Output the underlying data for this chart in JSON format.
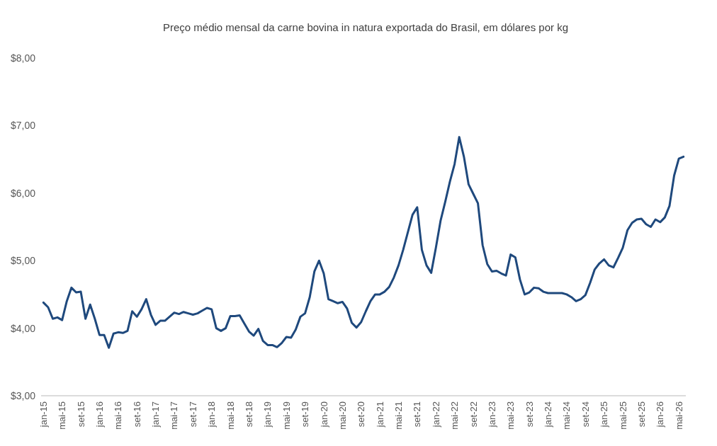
{
  "chart_data": {
    "type": "line",
    "title": "Preço médio mensal da carne bovina in natura exportada do Brasil, em dólares por kg",
    "categories": [
      "jan-15",
      null,
      null,
      null,
      "mai-15",
      null,
      null,
      null,
      "set-15",
      null,
      null,
      null,
      "jan-16",
      null,
      null,
      null,
      "mai-16",
      null,
      null,
      null,
      "set-16",
      null,
      null,
      null,
      "jan-17",
      null,
      null,
      null,
      "mai-17",
      null,
      null,
      null,
      "set-17",
      null,
      null,
      null,
      "jan-18",
      null,
      null,
      null,
      "mai-18",
      null,
      null,
      null,
      "set-18",
      null,
      null,
      null,
      "jan-19",
      null,
      null,
      null,
      "mai-19",
      null,
      null,
      null,
      "set-19",
      null,
      null,
      null,
      "jan-20",
      null,
      null,
      null,
      "mai-20",
      null,
      null,
      null,
      "set-20",
      null,
      null,
      null,
      "jan-21",
      null,
      null,
      null,
      "mai-21",
      null,
      null,
      null,
      "set-21",
      null,
      null,
      null,
      "jan-22",
      null,
      null,
      null,
      "mai-22",
      null,
      null,
      null,
      "set-22",
      null,
      null,
      null,
      "jan-23",
      null,
      null,
      null,
      "mai-23",
      null,
      null,
      null,
      "set-23",
      null,
      null,
      null,
      "jan-24",
      null,
      null,
      null,
      "mai-24",
      null,
      null,
      null,
      "set-24",
      null,
      null,
      null,
      "jan-25",
      null,
      null,
      null,
      "mai-25",
      null,
      null,
      null,
      "set-25",
      null,
      null,
      null,
      "jan-26",
      null,
      null,
      null,
      "mai-26",
      null
    ],
    "series": [
      {
        "color": "#1f497d",
        "values": [
          4.38,
          4.31,
          4.14,
          4.16,
          4.12,
          4.4,
          4.6,
          4.53,
          4.54,
          4.14,
          4.35,
          4.14,
          3.9,
          3.9,
          3.71,
          3.92,
          3.94,
          3.93,
          3.96,
          4.25,
          4.17,
          4.28,
          4.43,
          4.2,
          4.05,
          4.11,
          4.11,
          4.17,
          4.23,
          4.21,
          4.24,
          4.22,
          4.2,
          4.22,
          4.26,
          4.3,
          4.28,
          4.0,
          3.96,
          4.0,
          4.18,
          4.18,
          4.19,
          4.07,
          3.95,
          3.89,
          3.99,
          3.81,
          3.75,
          3.75,
          3.72,
          3.78,
          3.87,
          3.86,
          3.98,
          4.17,
          4.22,
          4.46,
          4.84,
          5.0,
          4.81,
          4.43,
          4.4,
          4.37,
          4.39,
          4.29,
          4.08,
          4.01,
          4.09,
          4.25,
          4.4,
          4.5,
          4.5,
          4.54,
          4.61,
          4.75,
          4.93,
          5.16,
          5.42,
          5.68,
          5.79,
          5.16,
          4.93,
          4.82,
          5.19,
          5.59,
          5.87,
          6.17,
          6.43,
          6.83,
          6.54,
          6.13,
          5.99,
          5.85,
          5.23,
          4.95,
          4.84,
          4.85,
          4.81,
          4.78,
          5.09,
          5.05,
          4.72,
          4.5,
          4.53,
          4.6,
          4.59,
          4.54,
          4.52,
          4.52,
          4.52,
          4.52,
          4.5,
          4.46,
          4.4,
          4.43,
          4.49,
          4.67,
          4.87,
          4.96,
          5.02,
          4.93,
          4.9,
          5.04,
          5.19,
          5.45,
          5.56,
          5.61,
          5.62,
          5.54,
          5.5,
          5.61,
          5.57,
          5.64,
          5.81,
          6.26,
          6.51,
          6.54
        ]
      }
    ],
    "ylim": [
      3,
      8
    ],
    "yticks": [
      {
        "value": 3,
        "label": "$3,00"
      },
      {
        "value": 4,
        "label": "$4,00"
      },
      {
        "value": 5,
        "label": "$5,00"
      },
      {
        "value": 6,
        "label": "$6,00"
      },
      {
        "value": 7,
        "label": "$7,00"
      },
      {
        "value": 8,
        "label": "$8,00"
      }
    ],
    "grid": false,
    "marker": "none",
    "line_style": "solid"
  }
}
